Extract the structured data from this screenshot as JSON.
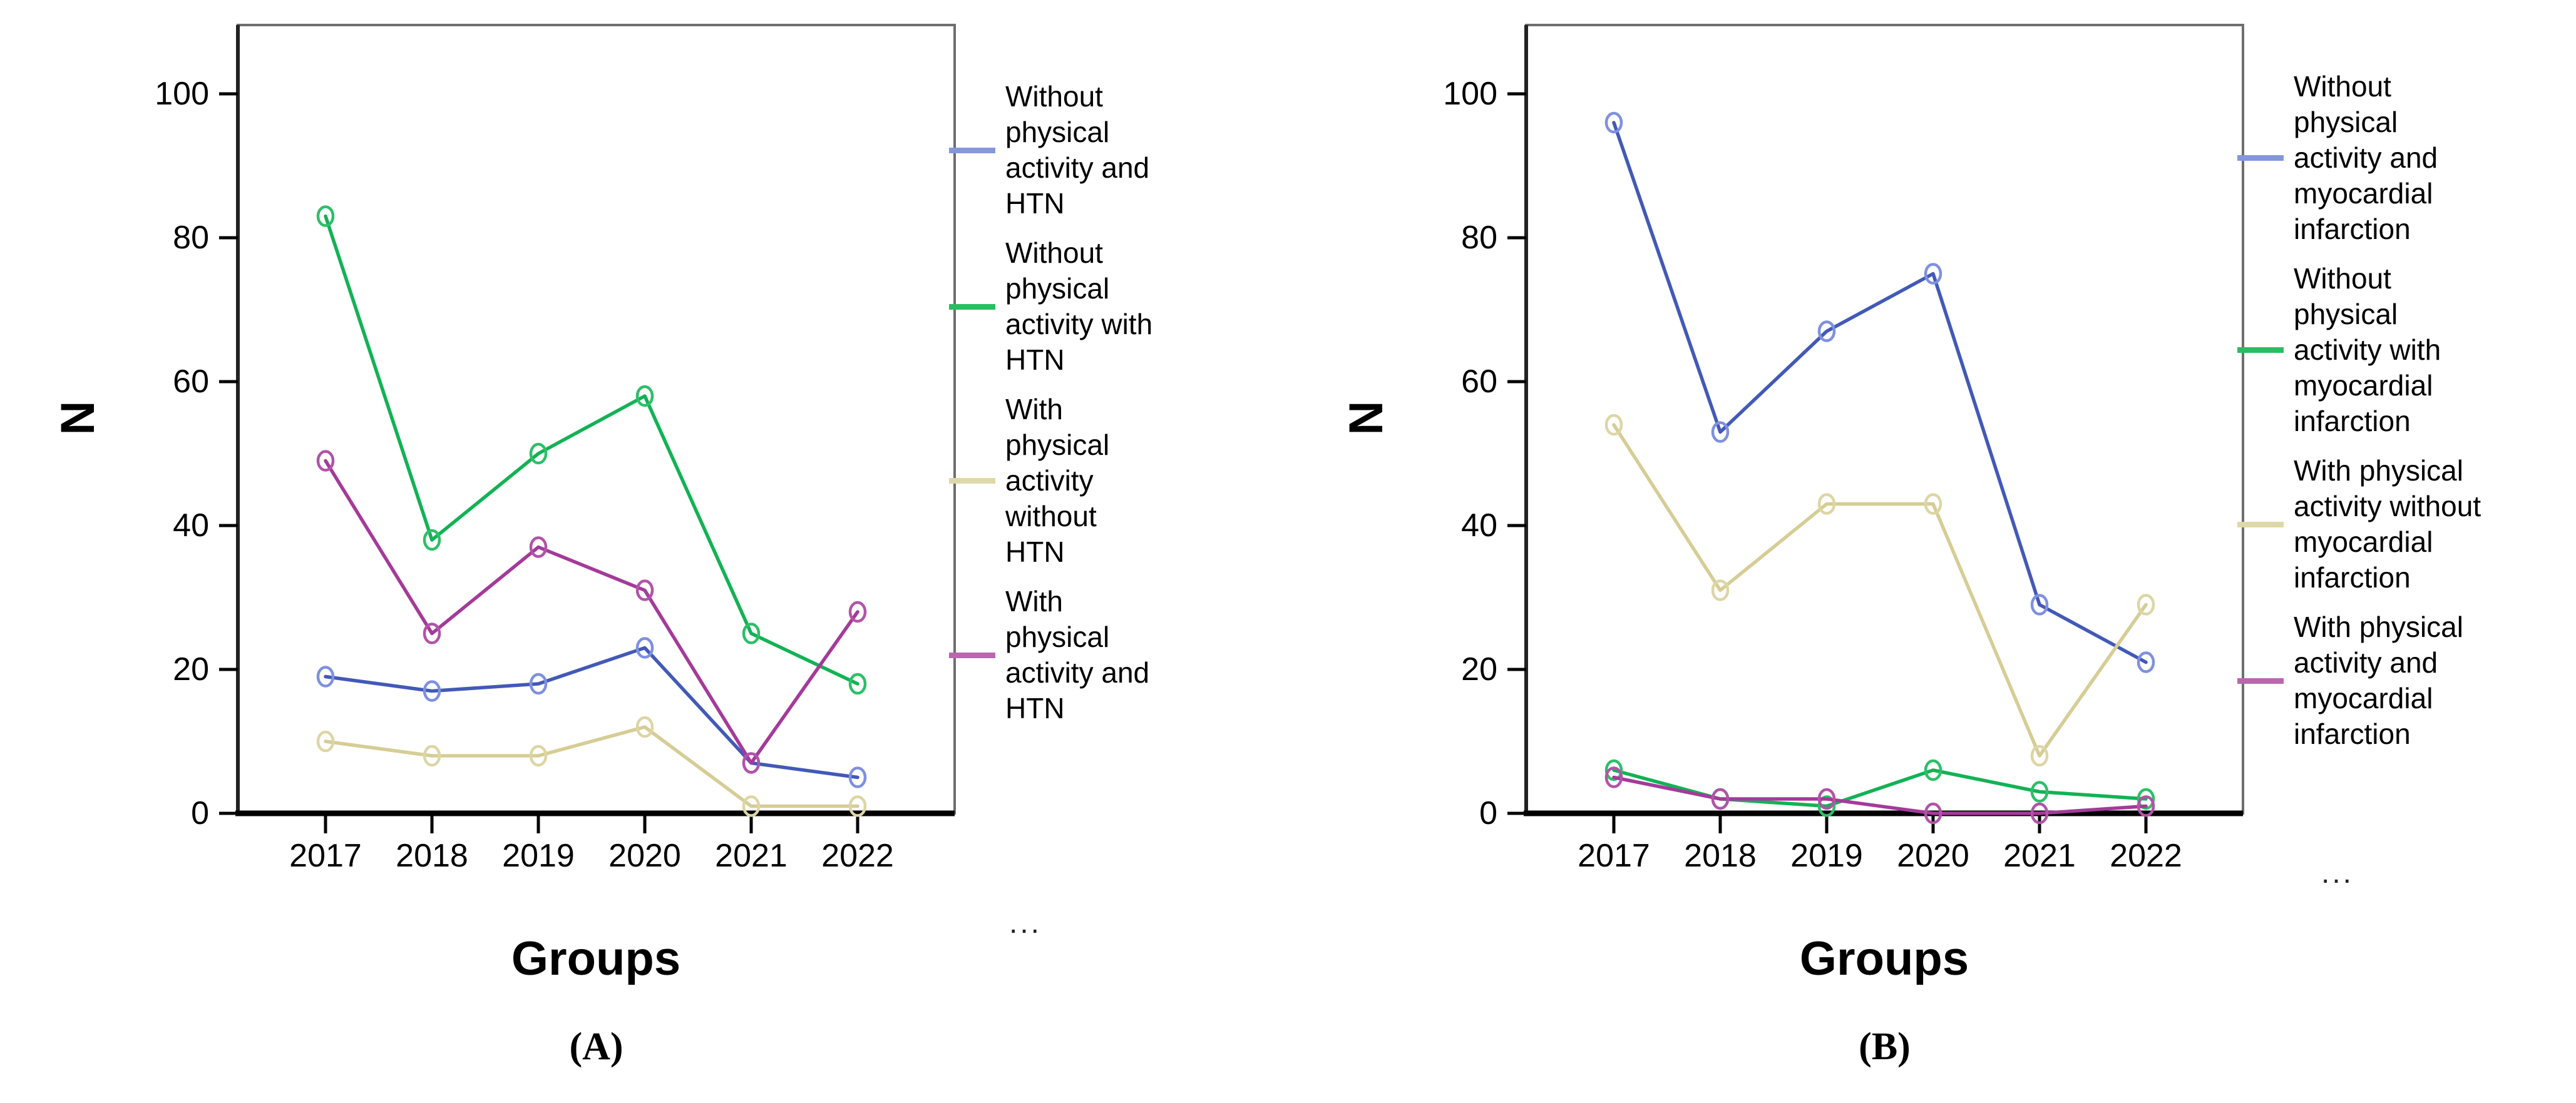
{
  "figure": {
    "background": "#ffffff"
  },
  "chart_data": [
    {
      "id": "A",
      "type": "line",
      "title": "",
      "caption": "(A)",
      "xlabel": "Groups",
      "ylabel": "N",
      "categories": [
        "2017",
        "2018",
        "2019",
        "2020",
        "2021",
        "2022"
      ],
      "y_ticks": [
        0,
        20,
        40,
        60,
        80,
        100
      ],
      "ylim": [
        0,
        110
      ],
      "grid": false,
      "legend_position": "right",
      "legend_more": "...",
      "series": [
        {
          "name": "Without physical activity and HTN",
          "legend_label": "Without\nphysical\nactivity and\nHTN",
          "line_color": "#4259b8",
          "marker_color": "#7e90e0",
          "swatch_color": "#8497d8",
          "values": [
            19,
            17,
            18,
            23,
            7,
            5
          ]
        },
        {
          "name": "Without physical activity with HTN",
          "legend_label": "Without\nphysical\nactivity with\nHTN",
          "line_color": "#12b254",
          "marker_color": "#2cbf68",
          "swatch_color": "#29bd62",
          "values": [
            83,
            38,
            50,
            58,
            25,
            18
          ]
        },
        {
          "name": "With physical activity without HTN",
          "legend_label": "With\nphysical\nactivity\nwithout\nHTN",
          "line_color": "#d6cd95",
          "marker_color": "#ddd5a5",
          "swatch_color": "#ded7a8",
          "values": [
            10,
            8,
            8,
            12,
            1,
            1
          ]
        },
        {
          "name": "With physical activity and HTN",
          "legend_label": "With\nphysical\nactivity and\nHTN",
          "line_color": "#a43a99",
          "marker_color": "#b153a8",
          "swatch_color": "#bb66af",
          "values": [
            49,
            25,
            37,
            31,
            7,
            28
          ]
        }
      ]
    },
    {
      "id": "B",
      "type": "line",
      "title": "",
      "caption": "(B)",
      "xlabel": "Groups",
      "ylabel": "N",
      "categories": [
        "2017",
        "2018",
        "2019",
        "2020",
        "2021",
        "2022"
      ],
      "y_ticks": [
        0,
        20,
        40,
        60,
        80,
        100
      ],
      "ylim": [
        0,
        110
      ],
      "grid": false,
      "legend_position": "right",
      "legend_more": "...",
      "series": [
        {
          "name": "Without physical activity and myocardial infarction",
          "legend_label": "Without\nphysical\nactivity and\nmyocardial\ninfarction",
          "line_color": "#4259b8",
          "marker_color": "#7e90e0",
          "swatch_color": "#8497d8",
          "values": [
            96,
            53,
            67,
            75,
            29,
            21
          ]
        },
        {
          "name": "Without physical activity with myocardial infarction",
          "legend_label": "Without\nphysical\nactivity with\nmyocardial\ninfarction",
          "line_color": "#12b254",
          "marker_color": "#2cbf68",
          "swatch_color": "#29bd62",
          "values": [
            6,
            2,
            1,
            6,
            3,
            2
          ]
        },
        {
          "name": "With physical activity without myocardial infarction",
          "legend_label": "With physical\nactivity without\nmyocardial\ninfarction",
          "line_color": "#d6cd95",
          "marker_color": "#ddd5a5",
          "swatch_color": "#ded7a8",
          "values": [
            54,
            31,
            43,
            43,
            8,
            29
          ]
        },
        {
          "name": "With physical activity and myocardial infarction",
          "legend_label": "With physical\nactivity and\nmyocardial\ninfarction",
          "line_color": "#a43a99",
          "marker_color": "#b153a8",
          "swatch_color": "#bb66af",
          "values": [
            5,
            2,
            2,
            0,
            0,
            1
          ]
        }
      ]
    }
  ]
}
